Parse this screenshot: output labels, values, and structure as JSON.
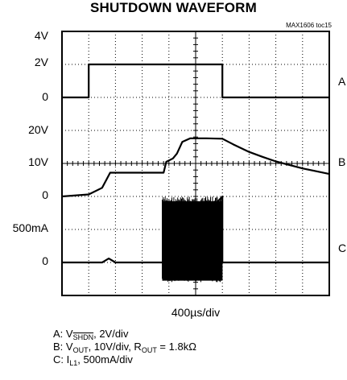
{
  "chart_data": {
    "type": "line",
    "title": "SHUTDOWN WAVEFORM",
    "figure_id": "MAX1606 toc15",
    "x_label": "400µs/div",
    "x_unit_per_div": "400µs",
    "divisions": {
      "x": 10,
      "y": 8
    },
    "y_tick_labels": [
      "4V",
      "2V",
      "0",
      "20V",
      "10V",
      "0",
      "500mA",
      "0"
    ],
    "channel_labels": [
      "A",
      "B",
      "C"
    ],
    "series": [
      {
        "name": "A",
        "quantity": "VSHDN",
        "scale": "2V/div",
        "x_div": [
          0,
          1.0,
          1.0,
          6.0,
          6.0,
          10
        ],
        "values": [
          0,
          0,
          2,
          2,
          0,
          0
        ]
      },
      {
        "name": "B",
        "quantity": "VOUT",
        "scale": "10V/div",
        "x_div": [
          0,
          1.0,
          1.5,
          1.8,
          3.8,
          3.9,
          4.15,
          4.3,
          4.5,
          4.8,
          5.1,
          5.4,
          6.0,
          6.4,
          7.0,
          7.5,
          8.0,
          9.0,
          10.0
        ],
        "values": [
          0,
          0.6,
          2.6,
          7.2,
          7.2,
          10.5,
          11.5,
          13,
          16.5,
          17.6,
          17.6,
          17.6,
          17.5,
          15.8,
          13.5,
          12.0,
          10.6,
          8.5,
          6.8
        ]
      },
      {
        "name": "C",
        "quantity": "IL1",
        "scale": "500mA/div",
        "x_div": [
          0,
          1.5,
          1.75,
          2.0,
          3.75,
          3.75,
          6.0,
          6.0,
          10
        ],
        "values": [
          0,
          0,
          60,
          0,
          0,
          1000,
          1000,
          0,
          0
        ],
        "note_values": "region between 3.75 and 6.0 div is dense switching noise from about -300 to 1000 mA"
      }
    ]
  },
  "legend": {
    "a_prefix": "A: V",
    "a_sub": "SHDN",
    "a_rest": ", 2V/div",
    "b_prefix": "B: V",
    "b_sub": "OUT",
    "b_mid": ", 10V/div, R",
    "b_sub2": "OUT",
    "b_rest": " = 1.8kΩ",
    "c_prefix": "C: I",
    "c_sub": "L1",
    "c_rest": ", 500mA/div"
  },
  "colors": {
    "trace": "#000000",
    "grid": "#000000",
    "background": "#ffffff"
  }
}
